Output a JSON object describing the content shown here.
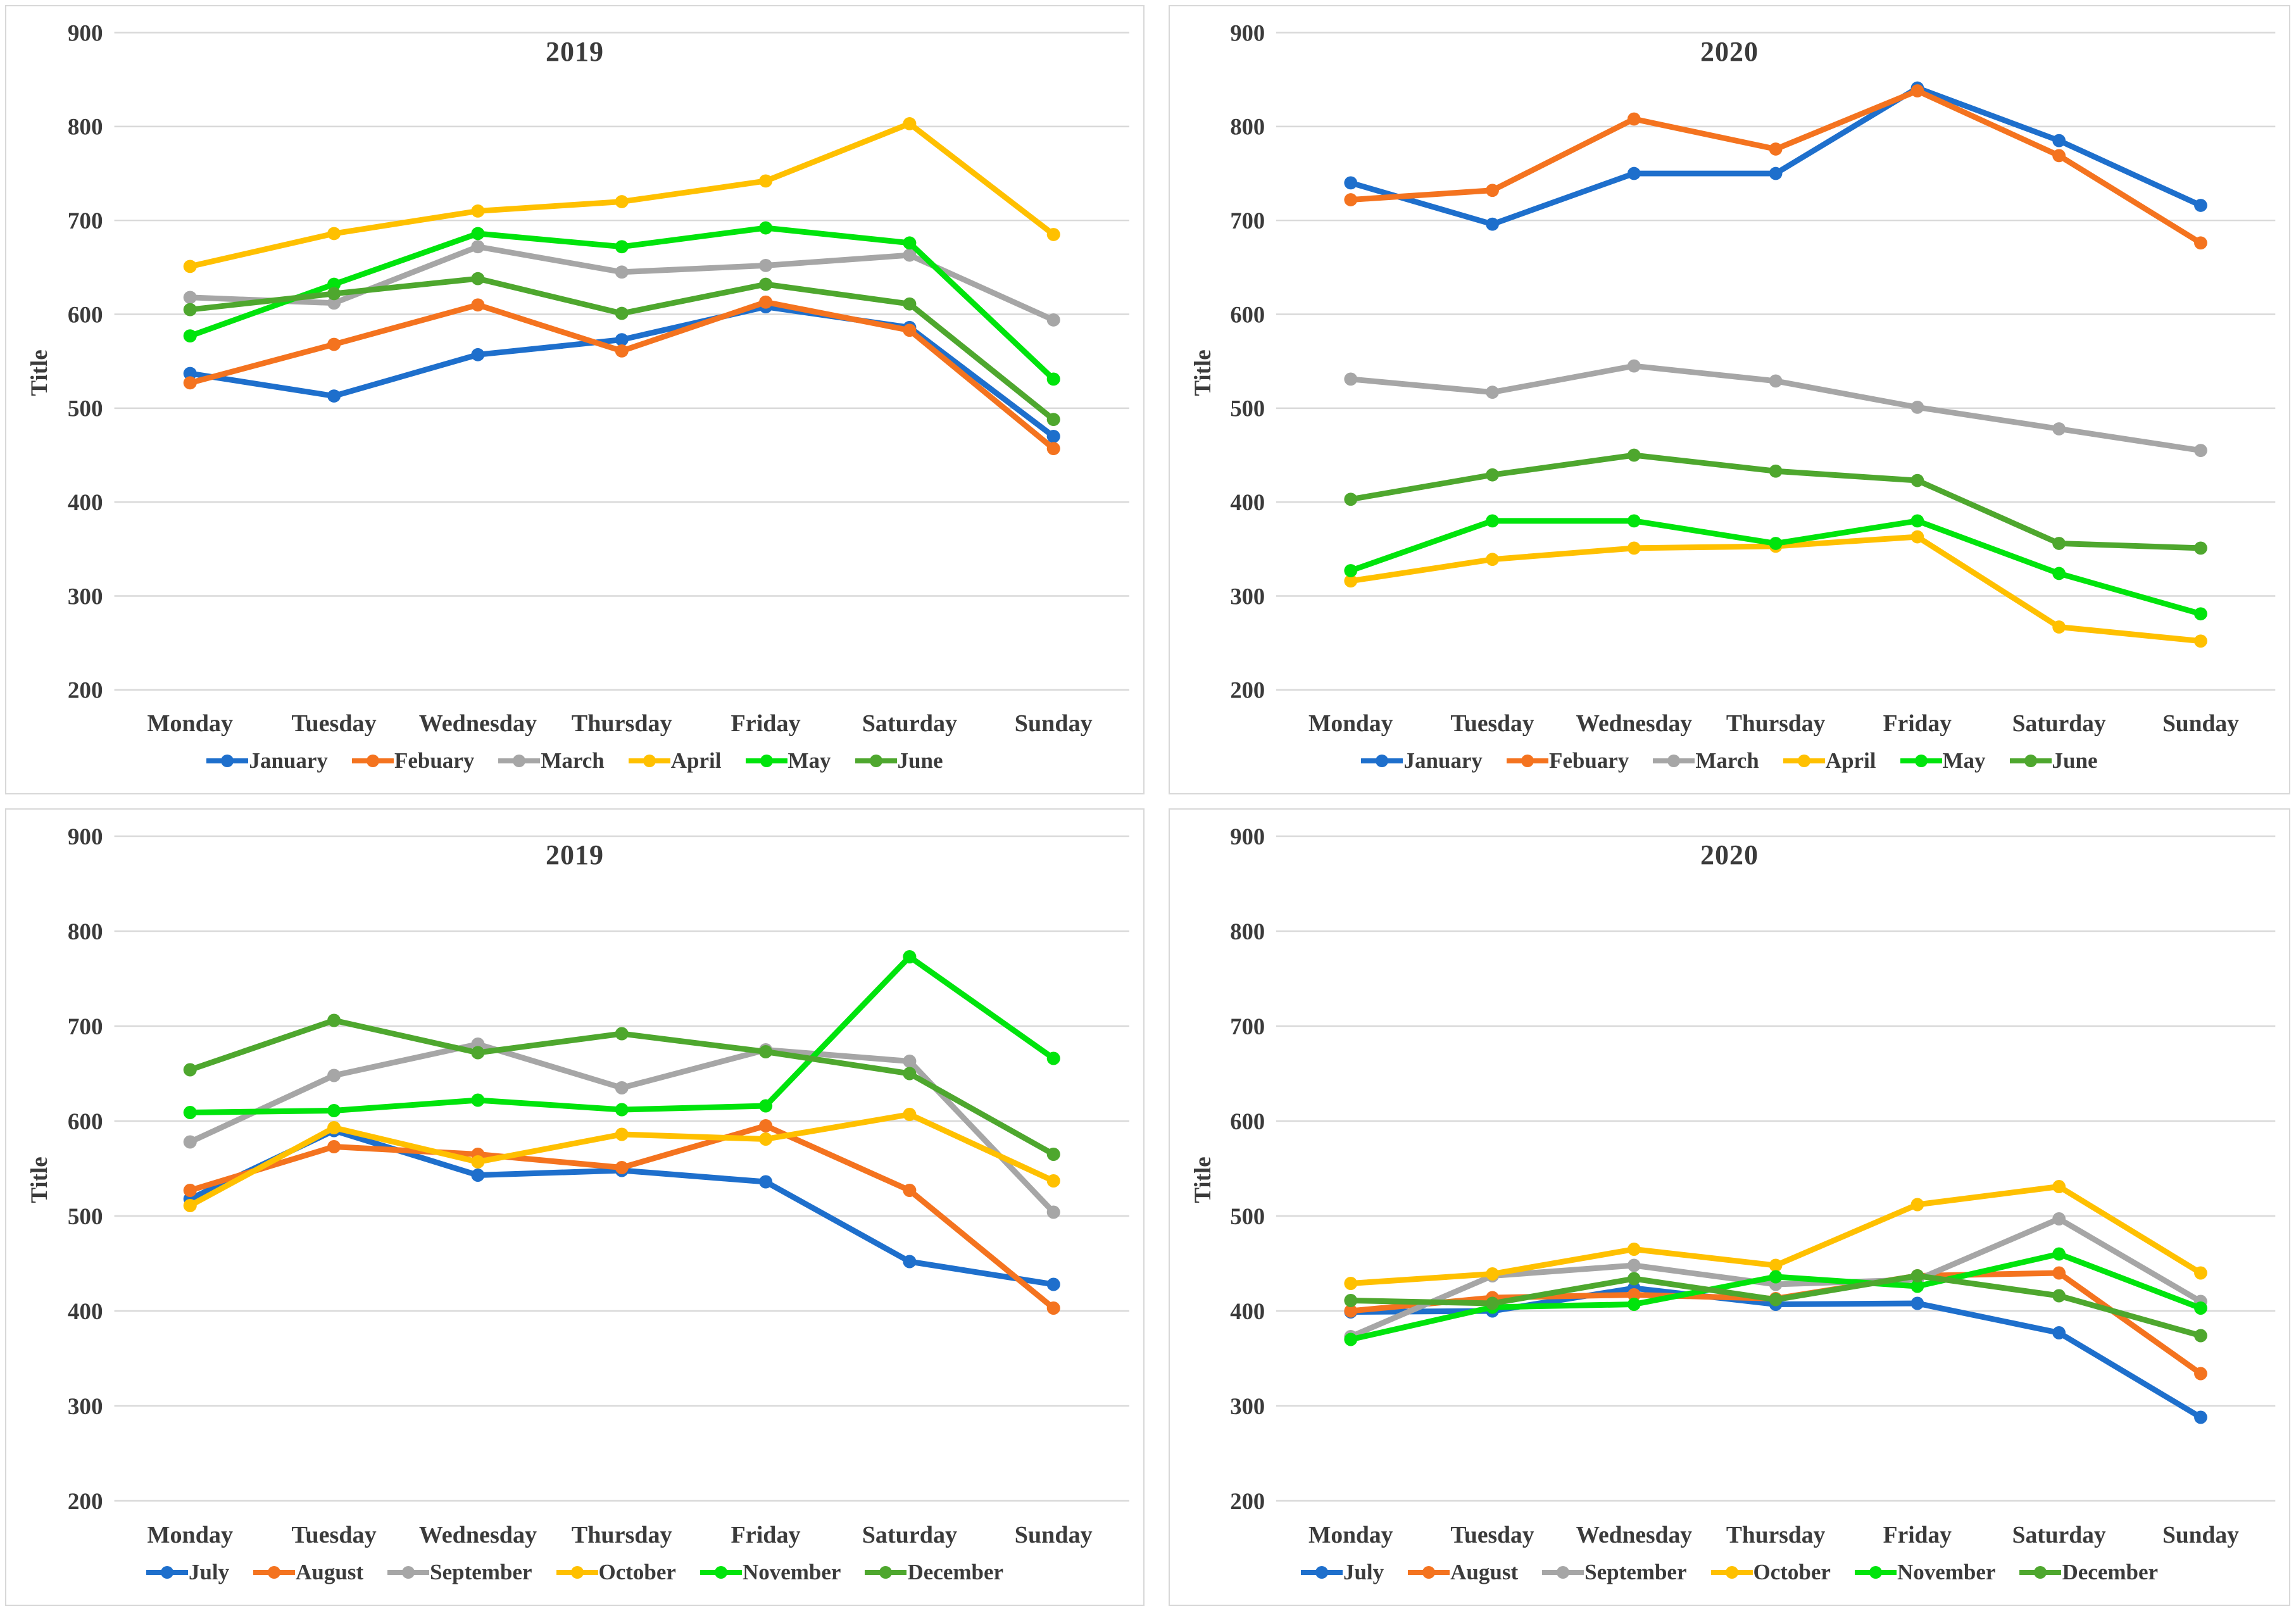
{
  "page": {
    "background": "#ffffff",
    "panel_border_color": "#d8d8d8",
    "gridline_color": "#d9d9d9",
    "text_color": "#3b3b3b"
  },
  "chart_data": [
    {
      "type": "line",
      "title": "2019",
      "ylabel": "Title",
      "legend_position": "bottom",
      "grid": "horizontal",
      "categories": [
        "Monday",
        "Tuesday",
        "Wednesday",
        "Thursday",
        "Friday",
        "Saturday",
        "Sunday"
      ],
      "y_axis": {
        "min": 200,
        "max": 900,
        "step": 100,
        "ticks": [
          900,
          800,
          700,
          600,
          500,
          400,
          300,
          200
        ]
      },
      "series": [
        {
          "name": "January",
          "color": "#1e6fcc",
          "values": [
            537,
            513,
            557,
            573,
            608,
            586,
            470
          ]
        },
        {
          "name": "Febuary",
          "color": "#f4731f",
          "values": [
            527,
            568,
            610,
            561,
            613,
            583,
            457
          ]
        },
        {
          "name": "March",
          "color": "#a6a6a6",
          "values": [
            618,
            612,
            672,
            645,
            652,
            663,
            594
          ]
        },
        {
          "name": "April",
          "color": "#ffc000",
          "values": [
            651,
            686,
            710,
            720,
            742,
            803,
            685
          ]
        },
        {
          "name": "May",
          "color": "#00e40c",
          "values": [
            577,
            632,
            686,
            672,
            692,
            676,
            531
          ]
        },
        {
          "name": "June",
          "color": "#4ea72e",
          "values": [
            605,
            622,
            638,
            601,
            632,
            611,
            488
          ]
        }
      ]
    },
    {
      "type": "line",
      "title": "2020",
      "ylabel": "Title",
      "legend_position": "bottom",
      "grid": "horizontal",
      "categories": [
        "Monday",
        "Tuesday",
        "Wednesday",
        "Thursday",
        "Friday",
        "Saturday",
        "Sunday"
      ],
      "y_axis": {
        "min": 200,
        "max": 900,
        "step": 100,
        "ticks": [
          900,
          800,
          700,
          600,
          500,
          400,
          300,
          200
        ]
      },
      "series": [
        {
          "name": "January",
          "color": "#1e6fcc",
          "values": [
            740,
            696,
            750,
            750,
            841,
            785,
            716
          ]
        },
        {
          "name": "Febuary",
          "color": "#f4731f",
          "values": [
            722,
            732,
            808,
            776,
            838,
            769,
            676
          ]
        },
        {
          "name": "March",
          "color": "#a6a6a6",
          "values": [
            531,
            517,
            545,
            529,
            501,
            478,
            455
          ]
        },
        {
          "name": "April",
          "color": "#ffc000",
          "values": [
            316,
            339,
            351,
            353,
            363,
            267,
            252
          ]
        },
        {
          "name": "May",
          "color": "#00e40c",
          "values": [
            327,
            380,
            380,
            356,
            380,
            324,
            281
          ]
        },
        {
          "name": "June",
          "color": "#4ea72e",
          "values": [
            403,
            429,
            450,
            433,
            423,
            356,
            351
          ]
        }
      ]
    },
    {
      "type": "line",
      "title": "2019",
      "ylabel": "Title",
      "legend_position": "bottom",
      "grid": "horizontal",
      "categories": [
        "Monday",
        "Tuesday",
        "Wednesday",
        "Thursday",
        "Friday",
        "Saturday",
        "Sunday"
      ],
      "y_axis": {
        "min": 200,
        "max": 900,
        "step": 100,
        "ticks": [
          900,
          800,
          700,
          600,
          500,
          400,
          300,
          200
        ]
      },
      "series": [
        {
          "name": "July",
          "color": "#1e6fcc",
          "values": [
            518,
            590,
            543,
            548,
            536,
            452,
            428
          ]
        },
        {
          "name": "August",
          "color": "#f4731f",
          "values": [
            527,
            573,
            565,
            551,
            595,
            527,
            403
          ]
        },
        {
          "name": "September",
          "color": "#a6a6a6",
          "values": [
            578,
            648,
            681,
            635,
            675,
            663,
            504
          ]
        },
        {
          "name": "October",
          "color": "#ffc000",
          "values": [
            511,
            593,
            557,
            586,
            581,
            607,
            537
          ]
        },
        {
          "name": "November",
          "color": "#00e40c",
          "values": [
            609,
            611,
            622,
            612,
            616,
            773,
            666
          ]
        },
        {
          "name": "December",
          "color": "#4ea72e",
          "values": [
            654,
            706,
            672,
            692,
            673,
            650,
            565
          ]
        }
      ]
    },
    {
      "type": "line",
      "title": "2020",
      "ylabel": "Title",
      "legend_position": "bottom",
      "grid": "horizontal",
      "categories": [
        "Monday",
        "Tuesday",
        "Wednesday",
        "Thursday",
        "Friday",
        "Saturday",
        "Sunday"
      ],
      "y_axis": {
        "min": 200,
        "max": 900,
        "step": 100,
        "ticks": [
          900,
          800,
          700,
          600,
          500,
          400,
          300,
          200
        ]
      },
      "series": [
        {
          "name": "July",
          "color": "#1e6fcc",
          "values": [
            399,
            400,
            424,
            407,
            408,
            377,
            288
          ]
        },
        {
          "name": "August",
          "color": "#f4731f",
          "values": [
            400,
            414,
            417,
            413,
            437,
            440,
            334
          ]
        },
        {
          "name": "September",
          "color": "#a6a6a6",
          "values": [
            373,
            437,
            448,
            428,
            433,
            497,
            410
          ]
        },
        {
          "name": "October",
          "color": "#ffc000",
          "values": [
            429,
            439,
            465,
            448,
            512,
            531,
            440
          ]
        },
        {
          "name": "November",
          "color": "#00e40c",
          "values": [
            370,
            404,
            407,
            436,
            426,
            460,
            403
          ]
        },
        {
          "name": "December",
          "color": "#4ea72e",
          "values": [
            411,
            408,
            434,
            412,
            437,
            416,
            374
          ]
        }
      ]
    }
  ]
}
